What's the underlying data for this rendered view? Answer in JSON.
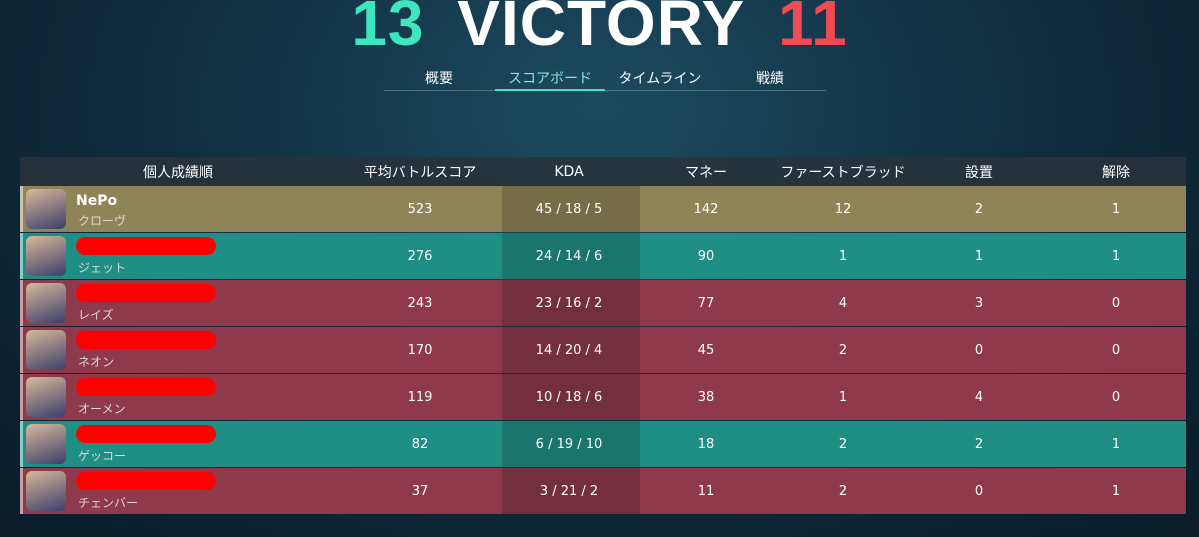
{
  "header": {
    "ally_score": 13,
    "result": "VICTORY",
    "enemy_score": 11
  },
  "tabs": [
    {
      "label": "概要"
    },
    {
      "label": "スコアボード",
      "active": true
    },
    {
      "label": "タイムライン"
    },
    {
      "label": "戦績"
    }
  ],
  "table": {
    "columns": [
      "個人成績順",
      "平均バトルスコア",
      "KDA",
      "マネー",
      "ファーストブラッド",
      "設置",
      "解除"
    ],
    "rows": [
      {
        "player": "NePo",
        "agent": "クローヴ",
        "acs": 523,
        "kda": "45 / 18 / 5",
        "money": 142,
        "first_blood": 12,
        "plants": 2,
        "defuses": 1,
        "color": "#8f8458"
      },
      {
        "agent": "ジェット",
        "acs": 276,
        "kda": "24 / 14 / 6",
        "money": 90,
        "first_blood": 1,
        "plants": 1,
        "defuses": 1,
        "color": "#1f8f86"
      },
      {
        "agent": "レイズ",
        "acs": 243,
        "kda": "23 / 16 / 2",
        "money": 77,
        "first_blood": 4,
        "plants": 3,
        "defuses": 0,
        "color": "#8e3a4c"
      },
      {
        "agent": "ネオン",
        "acs": 170,
        "kda": "14 / 20 / 4",
        "money": 45,
        "first_blood": 2,
        "plants": 0,
        "defuses": 0,
        "color": "#8e3a4c"
      },
      {
        "agent": "オーメン",
        "acs": 119,
        "kda": "10 / 18 / 6",
        "money": 38,
        "first_blood": 1,
        "plants": 4,
        "defuses": 0,
        "color": "#8e3a4c"
      },
      {
        "agent": "ゲッコー",
        "acs": 82,
        "kda": "6 / 19 / 10",
        "money": 18,
        "first_blood": 2,
        "plants": 2,
        "defuses": 1,
        "color": "#1f8f86"
      },
      {
        "agent": "チェンバー",
        "acs": 37,
        "kda": "3 / 21 / 2",
        "money": 11,
        "first_blood": 2,
        "plants": 0,
        "defuses": 1,
        "color": "#8e3a4c"
      }
    ]
  }
}
